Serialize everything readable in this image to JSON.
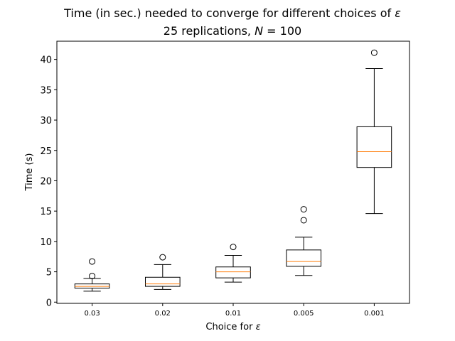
{
  "chart_data": {
    "type": "box",
    "title": {
      "line1_prefix": "Time (in sec.) needed to converge for different choices of ",
      "line1_symbol": "ε",
      "line2_prefix": "25 replications, ",
      "line2_symbol": "N",
      "line2_suffix": " = 100"
    },
    "xlabel": {
      "prefix": "Choice for ",
      "symbol": "ε"
    },
    "ylabel": "Time (s)",
    "ylim": [
      -0.2,
      43
    ],
    "yticks": [
      0,
      5,
      10,
      15,
      20,
      25,
      30,
      35,
      40
    ],
    "categories": [
      "0.03",
      "0.02",
      "0.01",
      "0.005",
      "0.001"
    ],
    "boxes": [
      {
        "whisker_low": 1.8,
        "q1": 2.3,
        "median": 2.6,
        "q3": 3.0,
        "whisker_high": 3.9,
        "outliers": [
          4.3,
          6.7
        ]
      },
      {
        "whisker_low": 2.1,
        "q1": 2.6,
        "median": 3.0,
        "q3": 4.1,
        "whisker_high": 6.2,
        "outliers": [
          7.4
        ]
      },
      {
        "whisker_low": 3.3,
        "q1": 4.0,
        "median": 5.0,
        "q3": 5.8,
        "whisker_high": 7.7,
        "outliers": [
          9.1
        ]
      },
      {
        "whisker_low": 4.4,
        "q1": 5.9,
        "median": 6.7,
        "q3": 8.6,
        "whisker_high": 10.7,
        "outliers": [
          13.5,
          15.3
        ]
      },
      {
        "whisker_low": 14.6,
        "q1": 22.2,
        "median": 24.8,
        "q3": 28.9,
        "whisker_high": 38.5,
        "outliers": [
          41.1
        ]
      }
    ],
    "colors": {
      "box": "#000000",
      "median": "#ff7f0e",
      "background": "#ffffff"
    },
    "grid": false
  }
}
